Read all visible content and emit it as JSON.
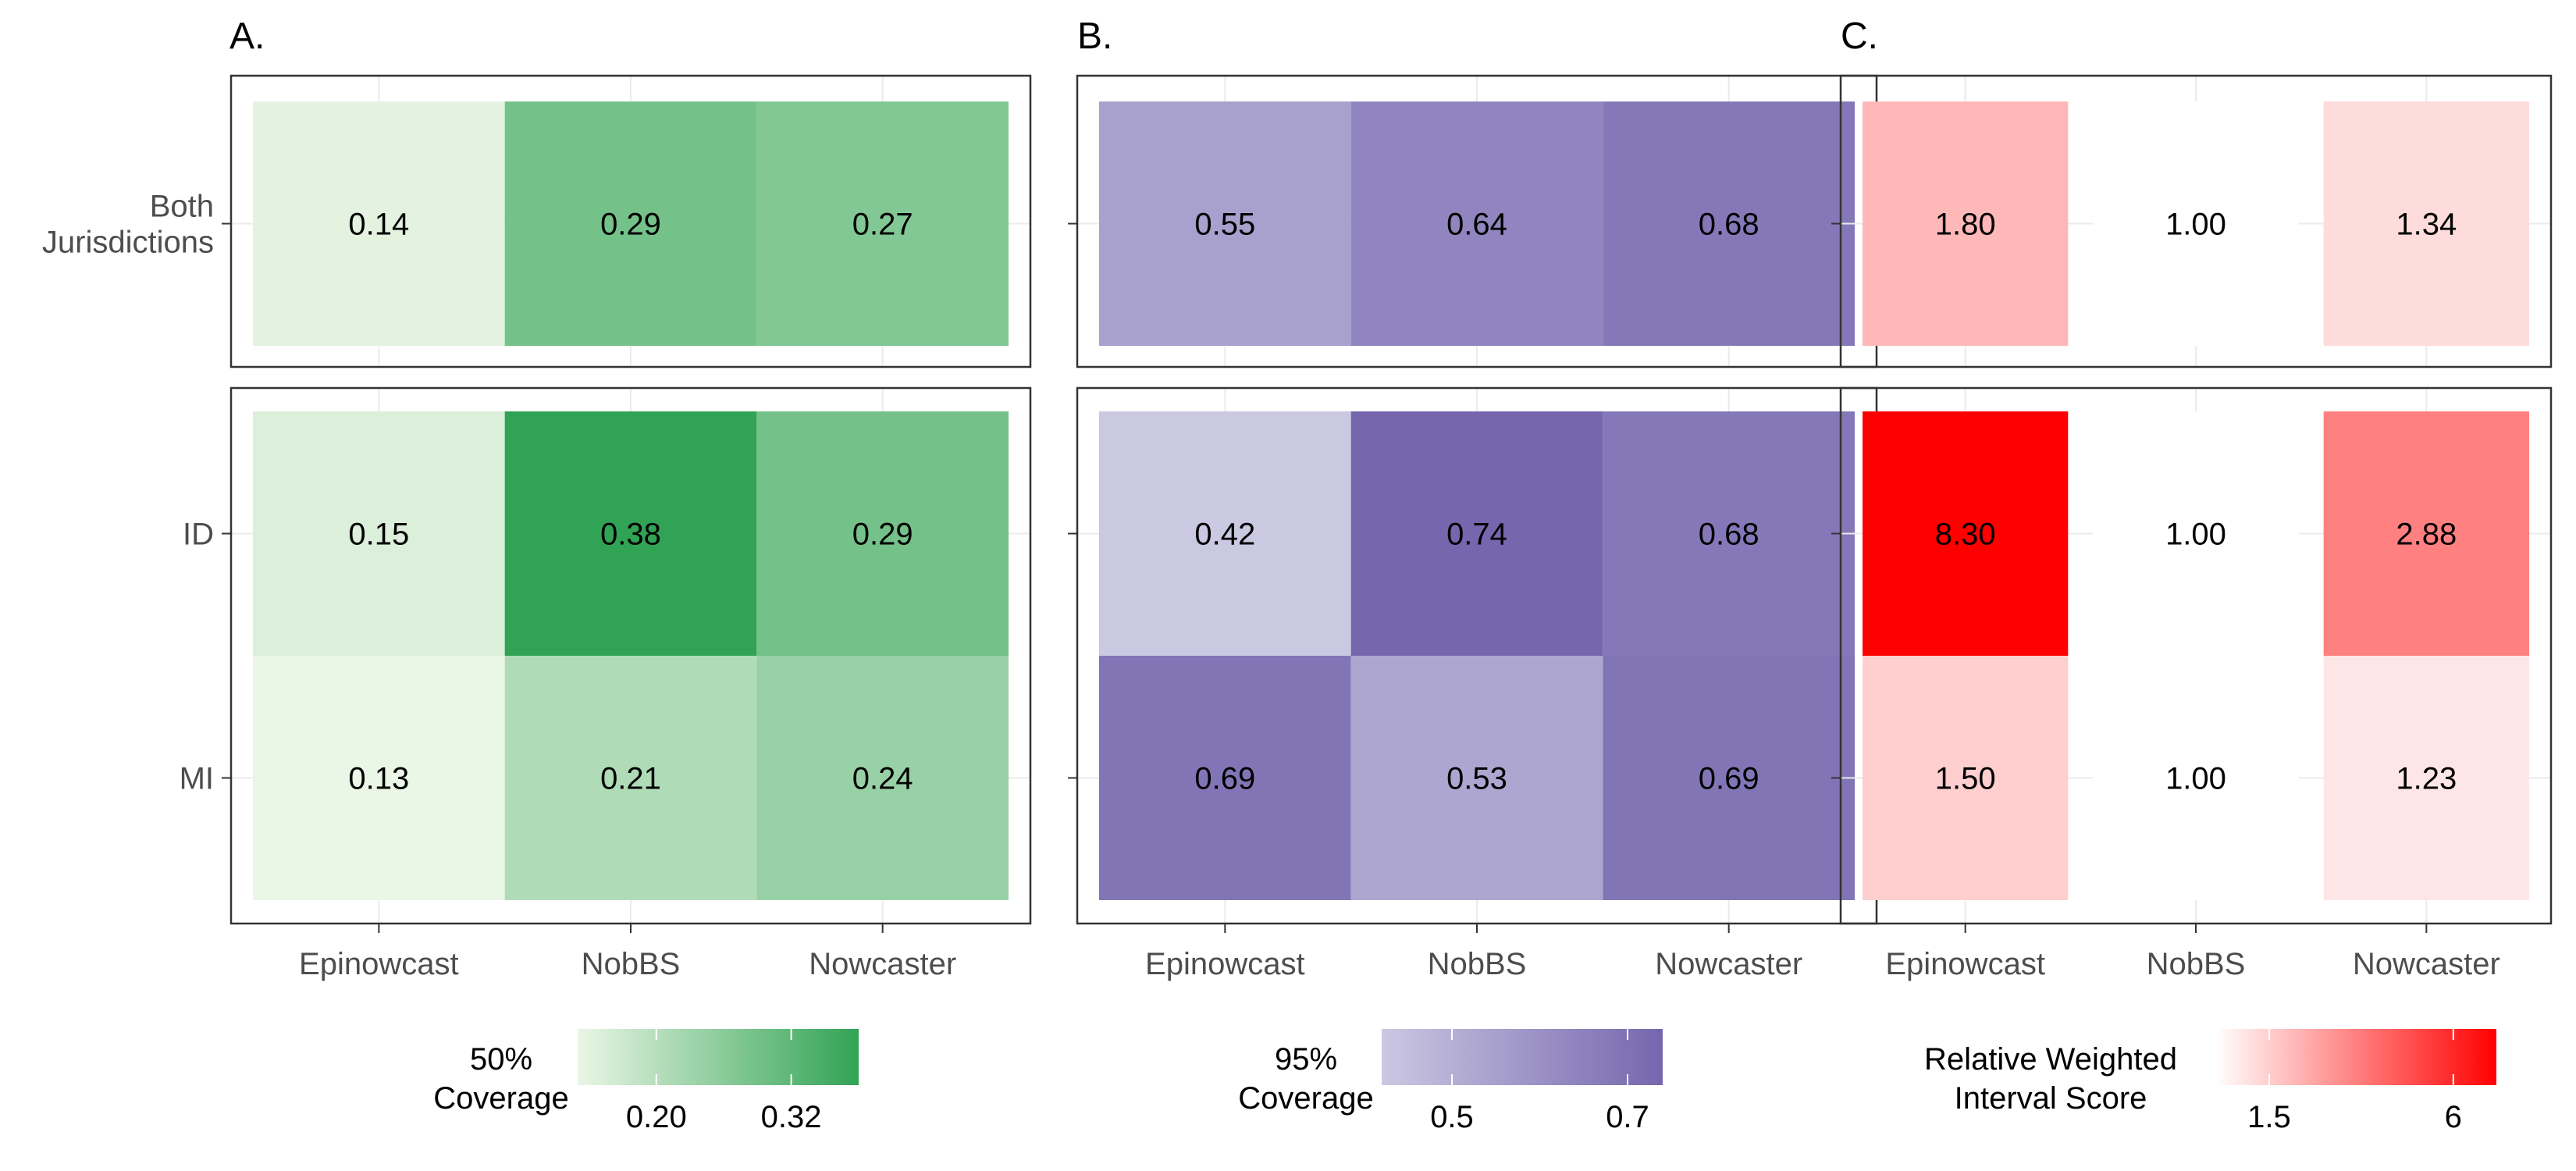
{
  "chart_data": [
    {
      "type": "heatmap",
      "panel_label": "A.",
      "x_categories": [
        "Epinowcast",
        "NobBS",
        "Nowcaster"
      ],
      "facets": [
        {
          "y_categories": [
            "Both\nJurisdictions"
          ],
          "values": [
            [
              0.14,
              0.29,
              0.27
            ]
          ]
        },
        {
          "y_categories": [
            "ID",
            "MI"
          ],
          "values": [
            [
              0.15,
              0.38,
              0.29
            ],
            [
              0.13,
              0.21,
              0.24
            ]
          ]
        }
      ],
      "value_labels_text": [
        [
          "0.14",
          "0.29",
          "0.27"
        ],
        [
          "0.15",
          "0.38",
          "0.29"
        ],
        [
          "0.13",
          "0.21",
          "0.24"
        ]
      ],
      "legend": {
        "title": "50%\nCoverage",
        "ticks": [
          "0.20",
          "0.32"
        ],
        "tick_values": [
          0.2,
          0.32
        ],
        "range": [
          0.13,
          0.38
        ],
        "scale": "linear",
        "colors": [
          "#eaf6e6",
          "#31a354"
        ],
        "position": "bottom"
      }
    },
    {
      "type": "heatmap",
      "panel_label": "B.",
      "x_categories": [
        "Epinowcast",
        "NobBS",
        "Nowcaster"
      ],
      "facets": [
        {
          "y_categories": [
            "Both\nJurisdictions"
          ],
          "values": [
            [
              0.55,
              0.64,
              0.68
            ]
          ]
        },
        {
          "y_categories": [
            "ID",
            "MI"
          ],
          "values": [
            [
              0.42,
              0.74,
              0.68
            ],
            [
              0.69,
              0.53,
              0.69
            ]
          ]
        }
      ],
      "value_labels_text": [
        [
          "0.55",
          "0.64",
          "0.68"
        ],
        [
          "0.42",
          "0.74",
          "0.68"
        ],
        [
          "0.69",
          "0.53",
          "0.69"
        ]
      ],
      "legend": {
        "title": "95%\nCoverage",
        "ticks": [
          "0.5",
          "0.7"
        ],
        "tick_values": [
          0.5,
          0.7
        ],
        "range": [
          0.42,
          0.74
        ],
        "scale": "linear",
        "colors": [
          "#cbc8e2",
          "#7566ae"
        ],
        "position": "bottom"
      }
    },
    {
      "type": "heatmap",
      "panel_label": "C.",
      "x_categories": [
        "Epinowcast",
        "NobBS",
        "Nowcaster"
      ],
      "facets": [
        {
          "y_categories": [
            "Both\nJurisdictions"
          ],
          "values": [
            [
              1.8,
              1.0,
              1.34
            ]
          ]
        },
        {
          "y_categories": [
            "ID",
            "MI"
          ],
          "values": [
            [
              8.3,
              1.0,
              2.88
            ],
            [
              1.5,
              1.0,
              1.23
            ]
          ]
        }
      ],
      "value_labels_text": [
        [
          "1.80",
          "1.00",
          "1.34"
        ],
        [
          "8.30",
          "1.00",
          "2.88"
        ],
        [
          "1.50",
          "1.00",
          "1.23"
        ]
      ],
      "legend": {
        "title": "Relative Weighted\nInterval Score",
        "ticks": [
          "1.5",
          "6"
        ],
        "tick_values": [
          1.5,
          6
        ],
        "range": [
          1.0,
          8.3
        ],
        "scale": "log",
        "colors": [
          "#ffffff",
          "#ff0000"
        ],
        "position": "bottom"
      }
    }
  ]
}
